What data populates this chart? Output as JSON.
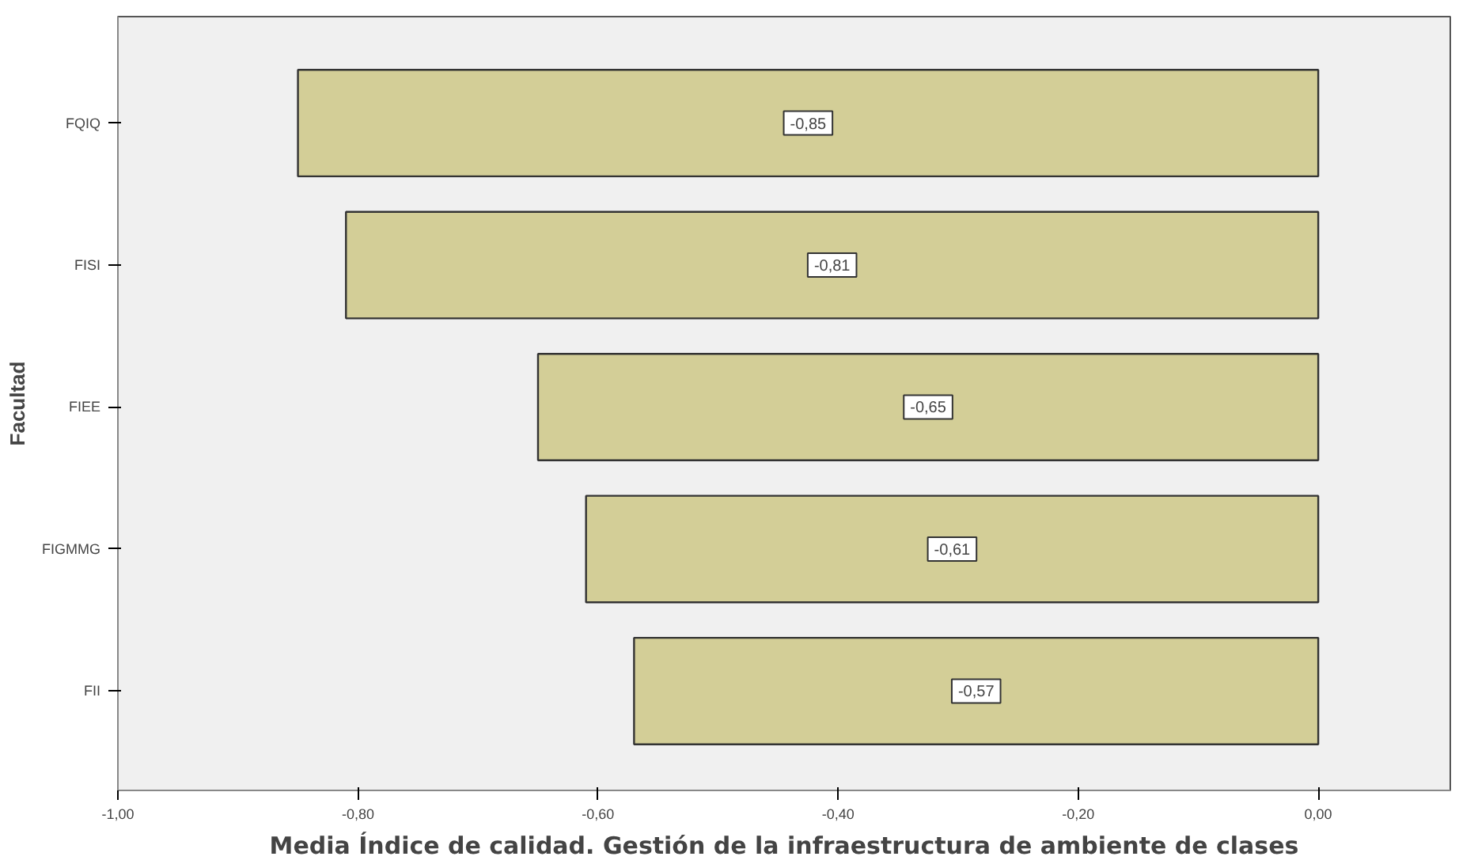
{
  "chart_data": {
    "type": "bar",
    "orientation": "horizontal",
    "xlabel": "Media Índice de calidad. Gestión de la infraestructura de ambiente de clases",
    "ylabel": "Facultad",
    "categories": [
      "FQIQ",
      "FISI",
      "FIEE",
      "FIGMMG",
      "FII"
    ],
    "values": [
      -0.85,
      -0.81,
      -0.65,
      -0.61,
      -0.57
    ],
    "value_labels": [
      "-0,85",
      "-0,81",
      "-0,65",
      "-0,61",
      "-0,57"
    ],
    "color": "#d3ce97",
    "xlim": [
      -1.0,
      0.11
    ],
    "xticks": [
      {
        "value": -1.0,
        "label": "-1,00"
      },
      {
        "value": -0.8,
        "label": "-0,80"
      },
      {
        "value": -0.6,
        "label": "-0,60"
      },
      {
        "value": -0.4,
        "label": "-0,40"
      },
      {
        "value": -0.2,
        "label": "-0,20"
      },
      {
        "value": 0.0,
        "label": "0,00"
      }
    ],
    "grid": false
  }
}
